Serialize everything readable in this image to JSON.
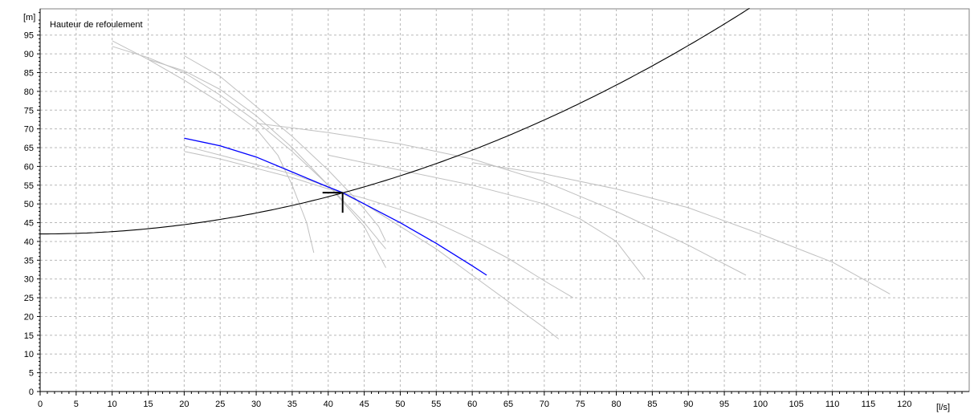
{
  "chart_data": {
    "type": "line",
    "title": "Hauteur de refoulement",
    "xlabel": "",
    "ylabel": "",
    "x_unit": "[l/s]",
    "y_unit": "[m]",
    "xlim": [
      0,
      129
    ],
    "ylim": [
      0,
      102
    ],
    "x_ticks": [
      0,
      5,
      10,
      15,
      20,
      25,
      30,
      35,
      40,
      45,
      50,
      55,
      60,
      65,
      70,
      75,
      80,
      85,
      90,
      95,
      100,
      105,
      110,
      115,
      120
    ],
    "y_ticks": [
      0,
      5,
      10,
      15,
      20,
      25,
      30,
      35,
      40,
      45,
      50,
      55,
      60,
      65,
      70,
      75,
      80,
      85,
      90,
      95
    ],
    "grid": true,
    "operating_point": {
      "x": 42,
      "y": 53
    },
    "system_curve": {
      "h0": 42,
      "k": 0.0062,
      "x_from": 0,
      "x_to": 98.5
    },
    "series": [
      {
        "color": "#0000ff",
        "role": "selected-pump",
        "points": [
          [
            20,
            67.5
          ],
          [
            25,
            65.5
          ],
          [
            30,
            62.5
          ],
          [
            35,
            58.5
          ],
          [
            40,
            54.5
          ],
          [
            42,
            53
          ],
          [
            45,
            50
          ],
          [
            50,
            45
          ],
          [
            55,
            39.5
          ],
          [
            60,
            33.5
          ],
          [
            62,
            31
          ]
        ]
      },
      {
        "color": "#c0c0c0",
        "role": "pump",
        "points": [
          [
            10,
            93.5
          ],
          [
            15,
            88.5
          ],
          [
            20,
            83
          ],
          [
            25,
            77
          ],
          [
            30,
            70
          ],
          [
            33,
            63
          ],
          [
            35,
            55
          ],
          [
            37,
            45
          ],
          [
            38,
            37
          ]
        ]
      },
      {
        "color": "#c0c0c0",
        "role": "pump",
        "points": [
          [
            10,
            92
          ],
          [
            15,
            89
          ],
          [
            20,
            85
          ],
          [
            25,
            79
          ],
          [
            30,
            72
          ],
          [
            35,
            64
          ],
          [
            40,
            55
          ],
          [
            45,
            45
          ],
          [
            48,
            38
          ]
        ]
      },
      {
        "color": "#c0c0c0",
        "role": "pump",
        "points": [
          [
            15,
            88.5
          ],
          [
            20,
            85.5
          ],
          [
            25,
            80.5
          ],
          [
            30,
            73.5
          ],
          [
            35,
            65
          ],
          [
            40,
            55
          ],
          [
            45,
            44
          ],
          [
            48,
            33
          ]
        ]
      },
      {
        "color": "#c0c0c0",
        "role": "pump",
        "points": [
          [
            20,
            89.5
          ],
          [
            25,
            84
          ],
          [
            30,
            76
          ],
          [
            35,
            68
          ],
          [
            40,
            59
          ],
          [
            44,
            51
          ],
          [
            47,
            44
          ],
          [
            48,
            40
          ]
        ]
      },
      {
        "color": "#c0c0c0",
        "role": "pump",
        "points": [
          [
            20,
            65.5
          ],
          [
            25,
            63
          ],
          [
            30,
            60.5
          ],
          [
            35,
            58
          ],
          [
            40,
            54.5
          ],
          [
            45,
            50
          ],
          [
            50,
            44
          ],
          [
            55,
            38
          ],
          [
            60,
            31
          ],
          [
            65,
            24
          ],
          [
            70,
            17
          ],
          [
            72,
            14
          ]
        ]
      },
      {
        "color": "#c0c0c0",
        "role": "pump",
        "points": [
          [
            20,
            64
          ],
          [
            25,
            62
          ],
          [
            30,
            59.5
          ],
          [
            35,
            57
          ],
          [
            40,
            54
          ],
          [
            45,
            51.5
          ],
          [
            50,
            48.5
          ],
          [
            55,
            45
          ],
          [
            60,
            40.5
          ],
          [
            65,
            35.5
          ],
          [
            70,
            29.5
          ],
          [
            74,
            25
          ]
        ]
      },
      {
        "color": "#c0c0c0",
        "role": "pump",
        "points": [
          [
            30,
            71.5
          ],
          [
            40,
            69
          ],
          [
            50,
            66
          ],
          [
            60,
            62
          ],
          [
            70,
            56
          ],
          [
            80,
            48
          ],
          [
            90,
            39
          ],
          [
            98,
            31
          ]
        ]
      },
      {
        "color": "#c0c0c0",
        "role": "pump",
        "points": [
          [
            40,
            63
          ],
          [
            50,
            59
          ],
          [
            60,
            55
          ],
          [
            70,
            50
          ],
          [
            75,
            46
          ],
          [
            80,
            40
          ],
          [
            84,
            30
          ]
        ]
      },
      {
        "color": "#c0c0c0",
        "role": "pump",
        "points": [
          [
            60,
            61
          ],
          [
            70,
            58
          ],
          [
            80,
            54
          ],
          [
            90,
            49
          ],
          [
            100,
            42
          ],
          [
            110,
            34.5
          ],
          [
            118,
            26
          ]
        ]
      }
    ]
  }
}
